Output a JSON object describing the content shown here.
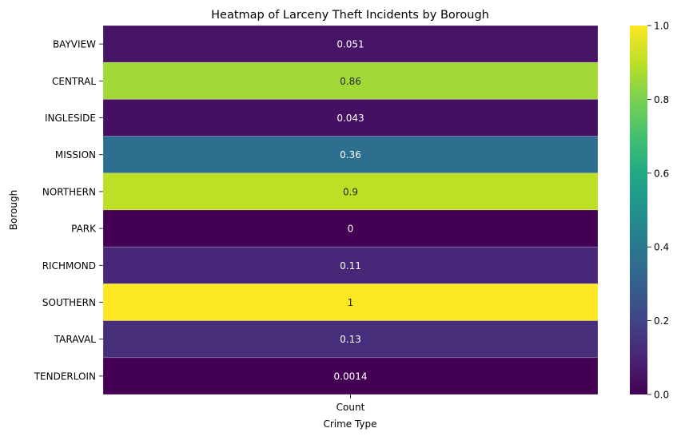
{
  "chart_data": {
    "type": "heatmap",
    "title": "Heatmap of Larceny Theft Incidents by Borough",
    "xlabel": "Crime Type",
    "ylabel": "Borough",
    "columns": [
      "Count"
    ],
    "rows": [
      "BAYVIEW",
      "CENTRAL",
      "INGLESIDE",
      "MISSION",
      "NORTHERN",
      "PARK",
      "RICHMOND",
      "SOUTHERN",
      "TARAVAL",
      "TENDERLOIN"
    ],
    "values": [
      0.051,
      0.86,
      0.043,
      0.36,
      0.9,
      0,
      0.11,
      1,
      0.13,
      0.0014
    ],
    "value_labels": [
      "0.051",
      "0.86",
      "0.043",
      "0.36",
      "0.9",
      "0",
      "0.11",
      "1",
      "0.13",
      "0.0014"
    ],
    "colormap": "viridis",
    "colorbar": {
      "range": [
        0,
        1
      ],
      "ticks": [
        0.0,
        0.2,
        0.4,
        0.6,
        0.8,
        1.0
      ],
      "tick_labels": [
        "0.0",
        "0.2",
        "0.4",
        "0.6",
        "0.8",
        "1.0"
      ]
    },
    "grid": false,
    "legend": "colorbar-right"
  }
}
